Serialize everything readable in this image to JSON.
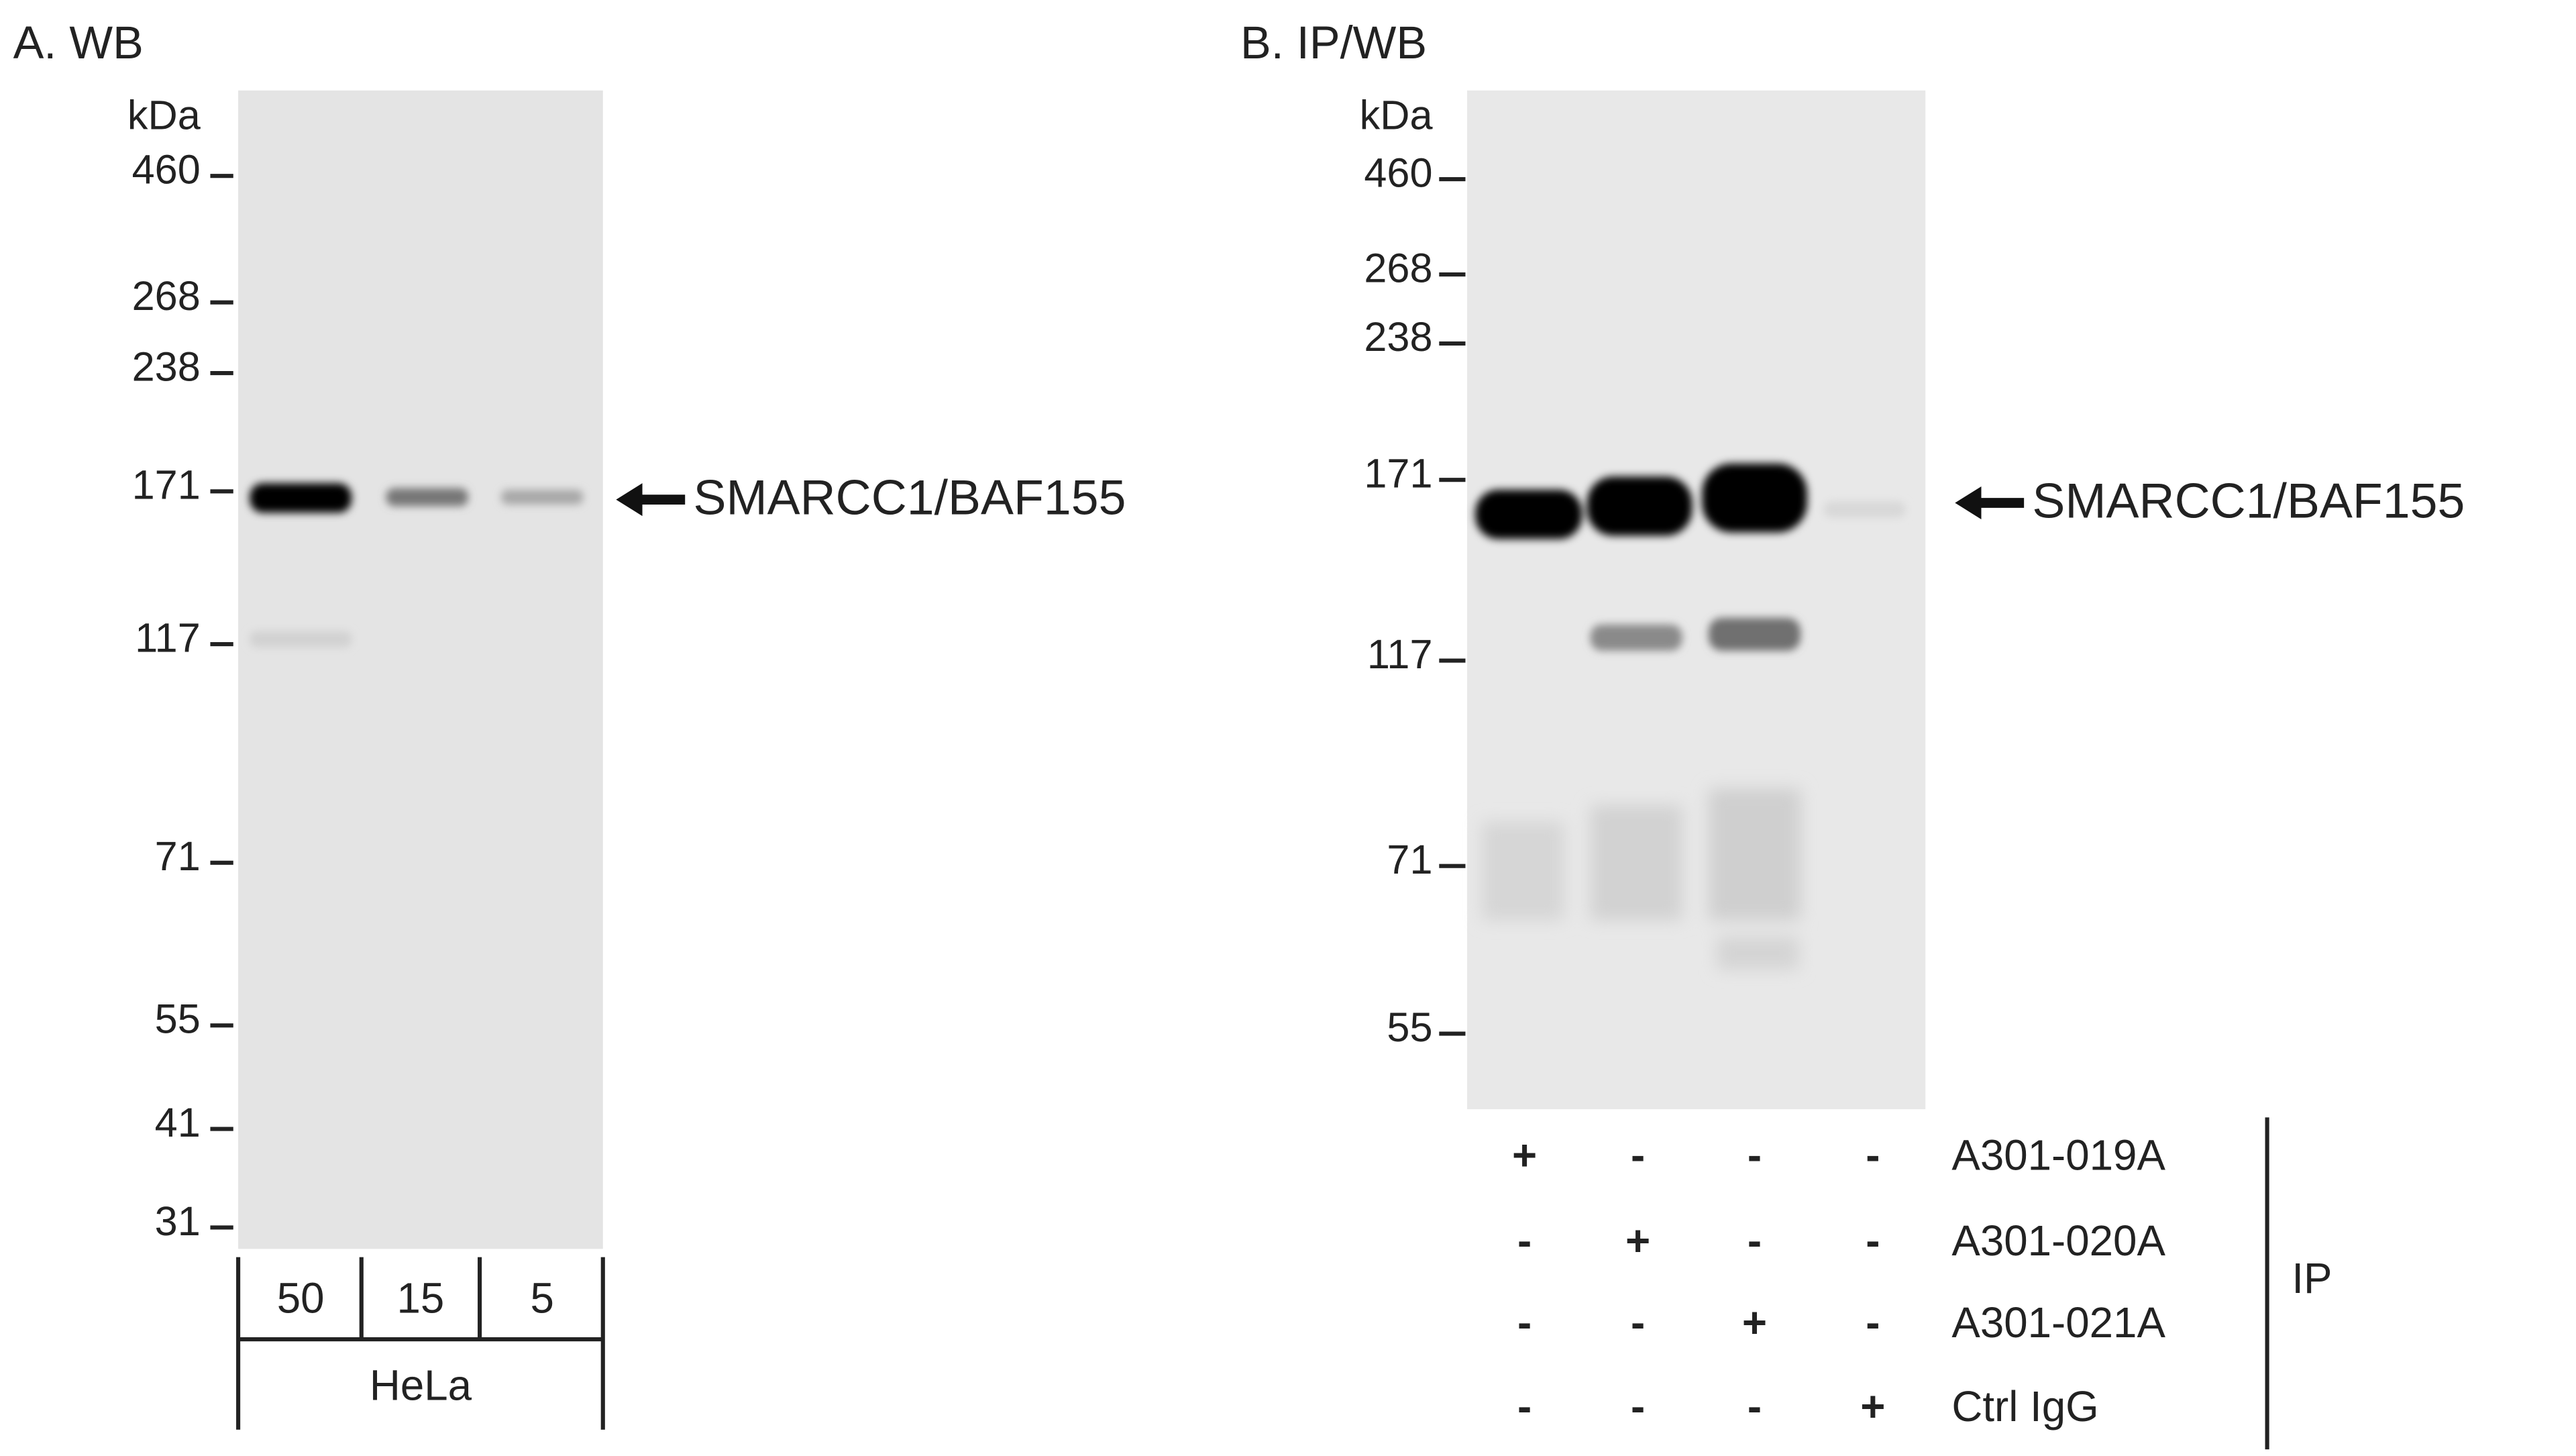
{
  "panels": [
    {
      "title": "A. WB",
      "unit": "kDa",
      "markers": [
        "460",
        "268",
        "238",
        "171",
        "117",
        "71",
        "55",
        "41",
        "31"
      ],
      "target_label": "SMARCC1/BAF155",
      "lanes": [
        "50",
        "15",
        "5"
      ],
      "sample": "HeLa"
    },
    {
      "title": "B. IP/WB",
      "unit": "kDa",
      "markers": [
        "460",
        "268",
        "238",
        "171",
        "117",
        "71",
        "55"
      ],
      "target_label": "SMARCC1/BAF155",
      "ip_rows": [
        {
          "label": "A301-019A",
          "marks": [
            "+",
            "-",
            "-",
            "-"
          ]
        },
        {
          "label": "A301-020A",
          "marks": [
            "-",
            "+",
            "-",
            "-"
          ]
        },
        {
          "label": "A301-021A",
          "marks": [
            "-",
            "-",
            "+",
            "-"
          ]
        },
        {
          "label": "Ctrl IgG",
          "marks": [
            "-",
            "-",
            "-",
            "+"
          ]
        }
      ],
      "ip_label": "IP"
    }
  ]
}
